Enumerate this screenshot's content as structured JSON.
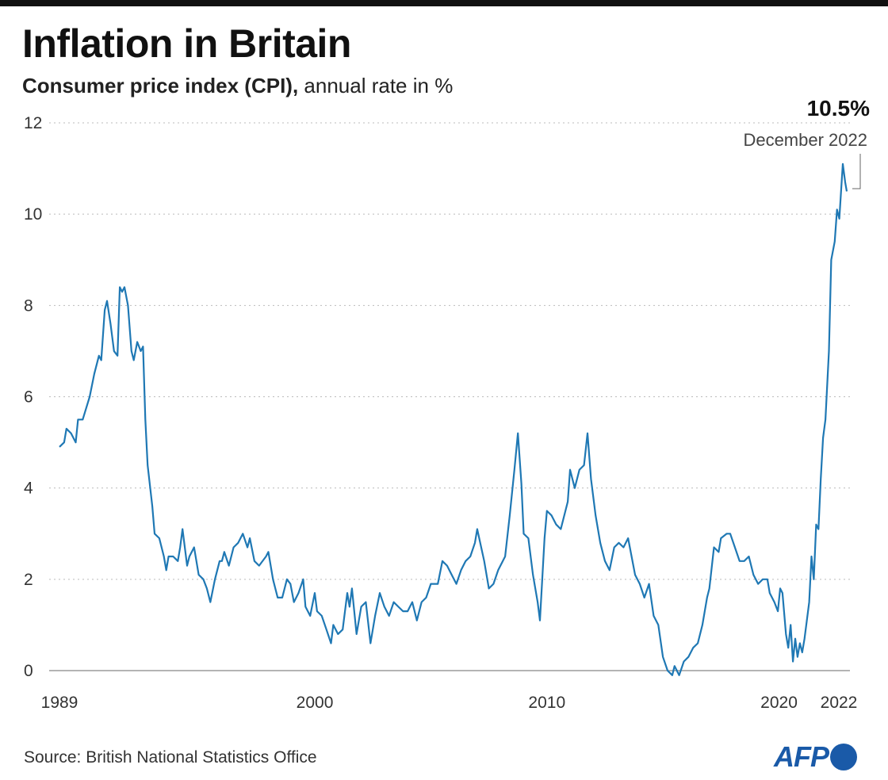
{
  "chart_data": {
    "type": "line",
    "title": "Inflation in Britain",
    "subtitle_bold": "Consumer price index (CPI),",
    "subtitle_rest": " annual rate in %",
    "ylim": [
      0,
      12
    ],
    "yticks": [
      0,
      2,
      4,
      6,
      8,
      10,
      12
    ],
    "xticks": [
      1989,
      2000,
      2010,
      2020,
      2022
    ],
    "xlim": [
      1989,
      2022.92
    ],
    "grid": "horizontal dotted",
    "line_color": "#1f78b4",
    "annotation": {
      "value": "10.5%",
      "label": "December 2022"
    },
    "series": [
      {
        "points": [
          [
            1989.0,
            4.9
          ],
          [
            1989.2,
            5.0
          ],
          [
            1989.3,
            5.3
          ],
          [
            1989.5,
            5.2
          ],
          [
            1989.7,
            5.0
          ],
          [
            1989.8,
            5.5
          ],
          [
            1990.0,
            5.5
          ],
          [
            1990.3,
            6.0
          ],
          [
            1990.5,
            6.5
          ],
          [
            1990.7,
            6.9
          ],
          [
            1990.8,
            6.8
          ],
          [
            1990.95,
            7.9
          ],
          [
            1991.05,
            8.1
          ],
          [
            1991.2,
            7.6
          ],
          [
            1991.35,
            7.0
          ],
          [
            1991.5,
            6.9
          ],
          [
            1991.6,
            8.4
          ],
          [
            1991.7,
            8.3
          ],
          [
            1991.8,
            8.4
          ],
          [
            1991.95,
            8.0
          ],
          [
            1992.1,
            7.0
          ],
          [
            1992.2,
            6.8
          ],
          [
            1992.35,
            7.2
          ],
          [
            1992.5,
            7.0
          ],
          [
            1992.6,
            7.1
          ],
          [
            1992.7,
            5.5
          ],
          [
            1992.8,
            4.5
          ],
          [
            1993.0,
            3.6
          ],
          [
            1993.1,
            3.0
          ],
          [
            1993.3,
            2.9
          ],
          [
            1993.5,
            2.5
          ],
          [
            1993.6,
            2.2
          ],
          [
            1993.7,
            2.5
          ],
          [
            1993.9,
            2.5
          ],
          [
            1994.1,
            2.4
          ],
          [
            1994.2,
            2.7
          ],
          [
            1994.3,
            3.1
          ],
          [
            1994.5,
            2.3
          ],
          [
            1994.6,
            2.5
          ],
          [
            1994.8,
            2.7
          ],
          [
            1995.0,
            2.1
          ],
          [
            1995.2,
            2.0
          ],
          [
            1995.35,
            1.8
          ],
          [
            1995.5,
            1.5
          ],
          [
            1995.7,
            2.0
          ],
          [
            1995.9,
            2.4
          ],
          [
            1996.0,
            2.4
          ],
          [
            1996.1,
            2.6
          ],
          [
            1996.3,
            2.3
          ],
          [
            1996.5,
            2.7
          ],
          [
            1996.7,
            2.8
          ],
          [
            1996.9,
            3.0
          ],
          [
            1997.1,
            2.7
          ],
          [
            1997.2,
            2.9
          ],
          [
            1997.4,
            2.4
          ],
          [
            1997.6,
            2.3
          ],
          [
            1997.9,
            2.5
          ],
          [
            1998.0,
            2.6
          ],
          [
            1998.2,
            2.0
          ],
          [
            1998.4,
            1.6
          ],
          [
            1998.6,
            1.6
          ],
          [
            1998.8,
            2.0
          ],
          [
            1998.95,
            1.9
          ],
          [
            1999.1,
            1.5
          ],
          [
            1999.3,
            1.7
          ],
          [
            1999.5,
            2.0
          ],
          [
            1999.6,
            1.4
          ],
          [
            1999.8,
            1.2
          ],
          [
            2000.0,
            1.7
          ],
          [
            2000.1,
            1.3
          ],
          [
            2000.3,
            1.2
          ],
          [
            2000.5,
            0.9
          ],
          [
            2000.7,
            0.6
          ],
          [
            2000.8,
            1.0
          ],
          [
            2001.0,
            0.8
          ],
          [
            2001.2,
            0.9
          ],
          [
            2001.4,
            1.7
          ],
          [
            2001.5,
            1.4
          ],
          [
            2001.6,
            1.8
          ],
          [
            2001.8,
            0.8
          ],
          [
            2002.0,
            1.4
          ],
          [
            2002.2,
            1.5
          ],
          [
            2002.4,
            0.6
          ],
          [
            2002.6,
            1.2
          ],
          [
            2002.8,
            1.7
          ],
          [
            2003.0,
            1.4
          ],
          [
            2003.2,
            1.2
          ],
          [
            2003.4,
            1.5
          ],
          [
            2003.6,
            1.4
          ],
          [
            2003.8,
            1.3
          ],
          [
            2004.0,
            1.3
          ],
          [
            2004.2,
            1.5
          ],
          [
            2004.4,
            1.1
          ],
          [
            2004.6,
            1.5
          ],
          [
            2004.8,
            1.6
          ],
          [
            2005.0,
            1.9
          ],
          [
            2005.3,
            1.9
          ],
          [
            2005.5,
            2.4
          ],
          [
            2005.7,
            2.3
          ],
          [
            2005.9,
            2.1
          ],
          [
            2006.1,
            1.9
          ],
          [
            2006.3,
            2.2
          ],
          [
            2006.5,
            2.4
          ],
          [
            2006.7,
            2.5
          ],
          [
            2006.9,
            2.8
          ],
          [
            2007.0,
            3.1
          ],
          [
            2007.3,
            2.4
          ],
          [
            2007.5,
            1.8
          ],
          [
            2007.7,
            1.9
          ],
          [
            2007.9,
            2.2
          ],
          [
            2008.2,
            2.5
          ],
          [
            2008.4,
            3.4
          ],
          [
            2008.6,
            4.4
          ],
          [
            2008.75,
            5.2
          ],
          [
            2008.9,
            4.1
          ],
          [
            2009.0,
            3.0
          ],
          [
            2009.2,
            2.9
          ],
          [
            2009.4,
            2.1
          ],
          [
            2009.6,
            1.5
          ],
          [
            2009.7,
            1.1
          ],
          [
            2009.9,
            2.9
          ],
          [
            2010.0,
            3.5
          ],
          [
            2010.2,
            3.4
          ],
          [
            2010.4,
            3.2
          ],
          [
            2010.6,
            3.1
          ],
          [
            2010.9,
            3.7
          ],
          [
            2011.0,
            4.4
          ],
          [
            2011.2,
            4.0
          ],
          [
            2011.4,
            4.4
          ],
          [
            2011.6,
            4.5
          ],
          [
            2011.75,
            5.2
          ],
          [
            2011.9,
            4.2
          ],
          [
            2012.1,
            3.4
          ],
          [
            2012.3,
            2.8
          ],
          [
            2012.5,
            2.4
          ],
          [
            2012.7,
            2.2
          ],
          [
            2012.9,
            2.7
          ],
          [
            2013.1,
            2.8
          ],
          [
            2013.3,
            2.7
          ],
          [
            2013.5,
            2.9
          ],
          [
            2013.8,
            2.1
          ],
          [
            2014.0,
            1.9
          ],
          [
            2014.2,
            1.6
          ],
          [
            2014.4,
            1.9
          ],
          [
            2014.6,
            1.2
          ],
          [
            2014.8,
            1.0
          ],
          [
            2015.0,
            0.3
          ],
          [
            2015.2,
            0.0
          ],
          [
            2015.4,
            -0.1
          ],
          [
            2015.5,
            0.1
          ],
          [
            2015.7,
            -0.1
          ],
          [
            2015.9,
            0.2
          ],
          [
            2016.1,
            0.3
          ],
          [
            2016.3,
            0.5
          ],
          [
            2016.5,
            0.6
          ],
          [
            2016.7,
            1.0
          ],
          [
            2016.9,
            1.6
          ],
          [
            2017.0,
            1.8
          ],
          [
            2017.2,
            2.7
          ],
          [
            2017.4,
            2.6
          ],
          [
            2017.5,
            2.9
          ],
          [
            2017.75,
            3.0
          ],
          [
            2017.9,
            3.0
          ],
          [
            2018.1,
            2.7
          ],
          [
            2018.3,
            2.4
          ],
          [
            2018.5,
            2.4
          ],
          [
            2018.7,
            2.5
          ],
          [
            2018.9,
            2.1
          ],
          [
            2019.1,
            1.9
          ],
          [
            2019.3,
            2.0
          ],
          [
            2019.5,
            2.0
          ],
          [
            2019.6,
            1.7
          ],
          [
            2019.8,
            1.5
          ],
          [
            2019.95,
            1.3
          ],
          [
            2020.05,
            1.8
          ],
          [
            2020.15,
            1.7
          ],
          [
            2020.3,
            0.8
          ],
          [
            2020.4,
            0.5
          ],
          [
            2020.5,
            1.0
          ],
          [
            2020.6,
            0.2
          ],
          [
            2020.7,
            0.7
          ],
          [
            2020.8,
            0.3
          ],
          [
            2020.9,
            0.6
          ],
          [
            2021.0,
            0.4
          ],
          [
            2021.1,
            0.7
          ],
          [
            2021.3,
            1.5
          ],
          [
            2021.4,
            2.5
          ],
          [
            2021.5,
            2.0
          ],
          [
            2021.6,
            3.2
          ],
          [
            2021.7,
            3.1
          ],
          [
            2021.8,
            4.2
          ],
          [
            2021.9,
            5.1
          ],
          [
            2022.0,
            5.5
          ],
          [
            2022.15,
            7.0
          ],
          [
            2022.25,
            9.0
          ],
          [
            2022.4,
            9.4
          ],
          [
            2022.5,
            10.1
          ],
          [
            2022.6,
            9.9
          ],
          [
            2022.75,
            11.1
          ],
          [
            2022.85,
            10.7
          ],
          [
            2022.92,
            10.5
          ]
        ]
      }
    ]
  },
  "footer": {
    "source": "Source: British National Statistics Office",
    "logo": "AFP"
  }
}
